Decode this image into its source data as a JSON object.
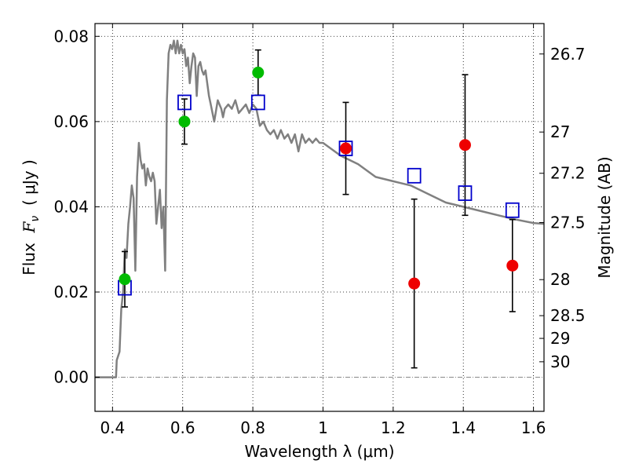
{
  "chart_data": {
    "type": "scatter",
    "xlabel": "Wavelength  λ (μm)",
    "ylabel": "Flux  F_ν  ( μJy )",
    "ylabel_parts": {
      "prefix": "Flux  ",
      "symbol": "F",
      "subscript": "ν",
      "suffix": "  ( μJy )"
    },
    "y2label": "Magnitude (AB)",
    "xlim": [
      0.35,
      1.63
    ],
    "ylim": [
      -0.008,
      0.083
    ],
    "grid": true,
    "x_ticks": [
      {
        "value": 0.4,
        "label": "0.4"
      },
      {
        "value": 0.6,
        "label": "0.6"
      },
      {
        "value": 0.8,
        "label": "0.8"
      },
      {
        "value": 1.0,
        "label": "1"
      },
      {
        "value": 1.2,
        "label": "1.2"
      },
      {
        "value": 1.4,
        "label": "1.4"
      },
      {
        "value": 1.6,
        "label": "1.6"
      }
    ],
    "y_ticks": [
      {
        "value": 0.0,
        "label": "0.00"
      },
      {
        "value": 0.02,
        "label": "0.02"
      },
      {
        "value": 0.04,
        "label": "0.04"
      },
      {
        "value": 0.06,
        "label": "0.06"
      },
      {
        "value": 0.08,
        "label": "0.08"
      }
    ],
    "y2_ticks": [
      {
        "value": 26.7,
        "label": "26.7"
      },
      {
        "value": 27.0,
        "label": "27"
      },
      {
        "value": 27.2,
        "label": "27.2"
      },
      {
        "value": 27.5,
        "label": "27.5"
      },
      {
        "value": 28.0,
        "label": "28"
      },
      {
        "value": 28.5,
        "label": "28.5"
      },
      {
        "value": 29.0,
        "label": "29"
      },
      {
        "value": 30.0,
        "label": "30"
      }
    ],
    "series": [
      {
        "kind": "line",
        "color": "#808080",
        "x": [
          0.35,
          0.41,
          0.412,
          0.42,
          0.425,
          0.43,
          0.435,
          0.44,
          0.445,
          0.45,
          0.455,
          0.46,
          0.465,
          0.47,
          0.475,
          0.48,
          0.485,
          0.49,
          0.495,
          0.5,
          0.505,
          0.51,
          0.515,
          0.52,
          0.525,
          0.53,
          0.535,
          0.54,
          0.545,
          0.55,
          0.555,
          0.56,
          0.565,
          0.57,
          0.575,
          0.58,
          0.585,
          0.59,
          0.595,
          0.6,
          0.605,
          0.61,
          0.615,
          0.62,
          0.625,
          0.63,
          0.635,
          0.64,
          0.645,
          0.65,
          0.655,
          0.66,
          0.665,
          0.67,
          0.675,
          0.68,
          0.69,
          0.7,
          0.705,
          0.71,
          0.715,
          0.72,
          0.73,
          0.74,
          0.75,
          0.76,
          0.77,
          0.78,
          0.79,
          0.8,
          0.81,
          0.82,
          0.83,
          0.84,
          0.85,
          0.86,
          0.87,
          0.88,
          0.89,
          0.9,
          0.91,
          0.92,
          0.93,
          0.94,
          0.95,
          0.96,
          0.97,
          0.98,
          0.99,
          1.0,
          1.05,
          1.1,
          1.15,
          1.2,
          1.25,
          1.3,
          1.35,
          1.4,
          1.45,
          1.5,
          1.55,
          1.6,
          1.63
        ],
        "y": [
          0.0,
          0.0,
          0.004,
          0.006,
          0.016,
          0.02,
          0.03,
          0.028,
          0.036,
          0.04,
          0.045,
          0.042,
          0.025,
          0.047,
          0.055,
          0.051,
          0.049,
          0.05,
          0.045,
          0.049,
          0.047,
          0.046,
          0.048,
          0.046,
          0.036,
          0.04,
          0.044,
          0.035,
          0.04,
          0.025,
          0.065,
          0.076,
          0.078,
          0.077,
          0.079,
          0.076,
          0.079,
          0.076,
          0.078,
          0.076,
          0.077,
          0.073,
          0.075,
          0.069,
          0.073,
          0.076,
          0.075,
          0.066,
          0.073,
          0.074,
          0.072,
          0.071,
          0.072,
          0.069,
          0.066,
          0.064,
          0.06,
          0.065,
          0.064,
          0.063,
          0.061,
          0.063,
          0.064,
          0.063,
          0.065,
          0.062,
          0.063,
          0.064,
          0.062,
          0.064,
          0.063,
          0.059,
          0.06,
          0.058,
          0.057,
          0.058,
          0.056,
          0.058,
          0.056,
          0.057,
          0.055,
          0.057,
          0.053,
          0.057,
          0.055,
          0.056,
          0.055,
          0.056,
          0.055,
          0.055,
          0.052,
          0.05,
          0.047,
          0.046,
          0.045,
          0.043,
          0.041,
          0.04,
          0.039,
          0.038,
          0.037,
          0.0362,
          0.036
        ]
      },
      {
        "kind": "markers",
        "marker": "square-open",
        "color": "#0000cc",
        "x": [
          0.435,
          0.605,
          0.815,
          1.065,
          1.26,
          1.405,
          1.54
        ],
        "y": [
          0.021,
          0.0645,
          0.0645,
          0.0537,
          0.0473,
          0.0432,
          0.0392
        ]
      },
      {
        "kind": "markers",
        "marker": "circle",
        "color": "#00bb00",
        "x": [
          0.435,
          0.605,
          0.815
        ],
        "y": [
          0.023,
          0.06,
          0.0715
        ],
        "yerr": [
          0.0065,
          0.0053,
          0.0053
        ]
      },
      {
        "kind": "markers",
        "marker": "circle",
        "color": "#ee0000",
        "x": [
          1.065,
          1.26,
          1.405,
          1.54
        ],
        "y": [
          0.0537,
          0.022,
          0.0545,
          0.0262
        ],
        "yerr": [
          0.0108,
          0.0198,
          0.0165,
          0.0108
        ]
      }
    ]
  }
}
